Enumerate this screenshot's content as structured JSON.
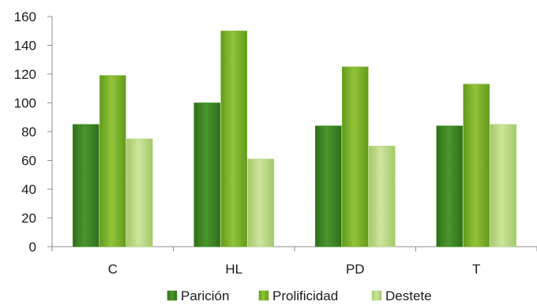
{
  "chart_data": {
    "type": "bar",
    "categories": [
      "C",
      "HL",
      "PD",
      "T"
    ],
    "series": [
      {
        "name": "Parición",
        "values": [
          85,
          100,
          84,
          84
        ],
        "color": "#3f8a25"
      },
      {
        "name": "Prolificidad",
        "values": [
          119,
          150,
          125,
          113
        ],
        "color": "#7fb22b"
      },
      {
        "name": "Destete",
        "values": [
          75,
          61,
          70,
          85
        ],
        "color": "#b9d782"
      }
    ],
    "ylim": [
      0,
      160
    ],
    "yticks": [
      0,
      20,
      40,
      60,
      80,
      100,
      120,
      140,
      160
    ],
    "title": "",
    "xlabel": "",
    "ylabel": "",
    "grid": false,
    "legend": "bottom"
  }
}
